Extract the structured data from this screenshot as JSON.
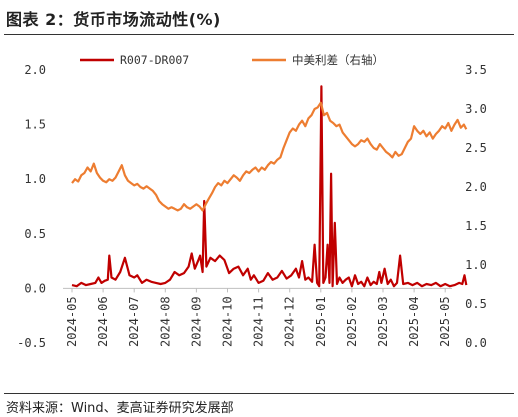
{
  "title": "图表 2：货币市场流动性(%)",
  "source": "资料来源：Wind、麦高证券研究发展部",
  "chart_data": {
    "type": "line",
    "colors": {
      "spread": "#c00000",
      "us_cn_diff": "#ed7d31"
    },
    "legend": [
      {
        "key": "spread",
        "label": "R007-DR007"
      },
      {
        "key": "us_cn_diff",
        "label": "中美利差（右轴）"
      }
    ],
    "left_axis": {
      "ylim": [
        -0.5,
        2.0
      ],
      "ticks": [
        "2.0",
        "1.5",
        "1.0",
        "0.5",
        "0.0",
        "-0.5"
      ]
    },
    "right_axis": {
      "ylim": [
        0.0,
        3.5
      ],
      "ticks": [
        "3.5",
        "3.0",
        "2.5",
        "2.0",
        "1.5",
        "1.0",
        "0.5",
        "0.0"
      ]
    },
    "x_tick_labels": [
      "2024-05",
      "2024-06",
      "2024-07",
      "2024-08",
      "2024-09",
      "2024-10",
      "2024-11",
      "2024-12",
      "2025-01",
      "2025-02",
      "2025-03",
      "2025-04",
      "2025-05"
    ],
    "series": [
      {
        "key": "spread",
        "name": "R007-DR007",
        "axis": "left",
        "points": [
          [
            0.0,
            0.03
          ],
          [
            0.15,
            0.02
          ],
          [
            0.3,
            0.05
          ],
          [
            0.45,
            0.03
          ],
          [
            0.6,
            0.04
          ],
          [
            0.75,
            0.05
          ],
          [
            0.85,
            0.1
          ],
          [
            0.95,
            0.05
          ],
          [
            1.05,
            0.07
          ],
          [
            1.15,
            0.08
          ],
          [
            1.2,
            0.3
          ],
          [
            1.27,
            0.1
          ],
          [
            1.4,
            0.08
          ],
          [
            1.55,
            0.15
          ],
          [
            1.7,
            0.28
          ],
          [
            1.85,
            0.12
          ],
          [
            2.0,
            0.1
          ],
          [
            2.1,
            0.12
          ],
          [
            2.25,
            0.05
          ],
          [
            2.4,
            0.08
          ],
          [
            2.55,
            0.06
          ],
          [
            2.7,
            0.05
          ],
          [
            2.85,
            0.04
          ],
          [
            3.0,
            0.05
          ],
          [
            3.15,
            0.08
          ],
          [
            3.3,
            0.15
          ],
          [
            3.45,
            0.12
          ],
          [
            3.6,
            0.14
          ],
          [
            3.75,
            0.2
          ],
          [
            3.85,
            0.32
          ],
          [
            3.95,
            0.18
          ],
          [
            4.05,
            0.25
          ],
          [
            4.12,
            0.3
          ],
          [
            4.2,
            0.15
          ],
          [
            4.25,
            0.8
          ],
          [
            4.32,
            0.2
          ],
          [
            4.45,
            0.28
          ],
          [
            4.6,
            0.25
          ],
          [
            4.75,
            0.3
          ],
          [
            4.9,
            0.26
          ],
          [
            5.05,
            0.14
          ],
          [
            5.2,
            0.18
          ],
          [
            5.35,
            0.2
          ],
          [
            5.5,
            0.12
          ],
          [
            5.65,
            0.18
          ],
          [
            5.75,
            0.08
          ],
          [
            5.85,
            0.12
          ],
          [
            6.0,
            0.05
          ],
          [
            6.15,
            0.07
          ],
          [
            6.3,
            0.14
          ],
          [
            6.45,
            0.08
          ],
          [
            6.6,
            0.1
          ],
          [
            6.75,
            0.16
          ],
          [
            6.9,
            0.09
          ],
          [
            7.05,
            0.12
          ],
          [
            7.2,
            0.18
          ],
          [
            7.3,
            0.1
          ],
          [
            7.4,
            0.25
          ],
          [
            7.5,
            0.08
          ],
          [
            7.6,
            0.1
          ],
          [
            7.72,
            0.06
          ],
          [
            7.8,
            0.4
          ],
          [
            7.88,
            0.05
          ],
          [
            7.95,
            0.02
          ],
          [
            8.02,
            1.85
          ],
          [
            8.08,
            0.05
          ],
          [
            8.15,
            0.1
          ],
          [
            8.22,
            0.4
          ],
          [
            8.28,
            0.05
          ],
          [
            8.33,
            1.05
          ],
          [
            8.38,
            0.02
          ],
          [
            8.45,
            0.6
          ],
          [
            8.52,
            0.04
          ],
          [
            8.6,
            0.1
          ],
          [
            8.7,
            0.05
          ],
          [
            8.8,
            0.08
          ],
          [
            8.9,
            0.1
          ],
          [
            9.0,
            0.02
          ],
          [
            9.1,
            0.12
          ],
          [
            9.2,
            0.04
          ],
          [
            9.3,
            0.06
          ],
          [
            9.4,
            0.02
          ],
          [
            9.5,
            0.1
          ],
          [
            9.6,
            0.03
          ],
          [
            9.7,
            0.06
          ],
          [
            9.8,
            0.04
          ],
          [
            9.88,
            0.15
          ],
          [
            9.95,
            0.05
          ],
          [
            10.05,
            0.18
          ],
          [
            10.15,
            0.04
          ],
          [
            10.25,
            0.08
          ],
          [
            10.35,
            0.02
          ],
          [
            10.45,
            0.05
          ],
          [
            10.55,
            0.3
          ],
          [
            10.65,
            0.04
          ],
          [
            10.8,
            0.05
          ],
          [
            10.95,
            0.03
          ],
          [
            11.1,
            0.05
          ],
          [
            11.25,
            0.02
          ],
          [
            11.4,
            0.04
          ],
          [
            11.55,
            0.03
          ],
          [
            11.7,
            0.05
          ],
          [
            11.85,
            0.02
          ],
          [
            12.0,
            0.04
          ],
          [
            12.15,
            0.02
          ],
          [
            12.3,
            0.03
          ],
          [
            12.45,
            0.05
          ],
          [
            12.55,
            0.04
          ],
          [
            12.62,
            0.12
          ],
          [
            12.68,
            0.03
          ]
        ]
      },
      {
        "key": "us_cn_diff",
        "name": "中美利差（右轴）",
        "axis": "right",
        "points": [
          [
            0.0,
            2.05
          ],
          [
            0.1,
            2.1
          ],
          [
            0.2,
            2.07
          ],
          [
            0.3,
            2.15
          ],
          [
            0.4,
            2.18
          ],
          [
            0.5,
            2.25
          ],
          [
            0.6,
            2.2
          ],
          [
            0.7,
            2.3
          ],
          [
            0.8,
            2.18
          ],
          [
            0.9,
            2.12
          ],
          [
            1.0,
            2.08
          ],
          [
            1.1,
            2.06
          ],
          [
            1.2,
            2.1
          ],
          [
            1.3,
            2.08
          ],
          [
            1.4,
            2.12
          ],
          [
            1.5,
            2.2
          ],
          [
            1.6,
            2.28
          ],
          [
            1.7,
            2.15
          ],
          [
            1.8,
            2.08
          ],
          [
            1.9,
            2.05
          ],
          [
            2.0,
            2.02
          ],
          [
            2.1,
            2.04
          ],
          [
            2.2,
            2.0
          ],
          [
            2.3,
            1.98
          ],
          [
            2.4,
            2.01
          ],
          [
            2.5,
            1.98
          ],
          [
            2.6,
            1.95
          ],
          [
            2.7,
            1.9
          ],
          [
            2.8,
            1.82
          ],
          [
            2.9,
            1.78
          ],
          [
            3.0,
            1.75
          ],
          [
            3.1,
            1.72
          ],
          [
            3.2,
            1.74
          ],
          [
            3.3,
            1.72
          ],
          [
            3.4,
            1.7
          ],
          [
            3.5,
            1.72
          ],
          [
            3.6,
            1.78
          ],
          [
            3.7,
            1.74
          ],
          [
            3.8,
            1.72
          ],
          [
            3.9,
            1.75
          ],
          [
            4.0,
            1.78
          ],
          [
            4.1,
            1.75
          ],
          [
            4.2,
            1.7
          ],
          [
            4.3,
            1.78
          ],
          [
            4.4,
            1.85
          ],
          [
            4.5,
            1.92
          ],
          [
            4.6,
            2.0
          ],
          [
            4.7,
            2.05
          ],
          [
            4.8,
            2.02
          ],
          [
            4.9,
            2.08
          ],
          [
            5.0,
            2.05
          ],
          [
            5.1,
            2.1
          ],
          [
            5.2,
            2.15
          ],
          [
            5.3,
            2.12
          ],
          [
            5.4,
            2.08
          ],
          [
            5.5,
            2.15
          ],
          [
            5.6,
            2.2
          ],
          [
            5.7,
            2.18
          ],
          [
            5.8,
            2.22
          ],
          [
            5.9,
            2.25
          ],
          [
            6.0,
            2.2
          ],
          [
            6.1,
            2.25
          ],
          [
            6.2,
            2.22
          ],
          [
            6.3,
            2.28
          ],
          [
            6.4,
            2.32
          ],
          [
            6.5,
            2.3
          ],
          [
            6.6,
            2.35
          ],
          [
            6.7,
            2.38
          ],
          [
            6.8,
            2.5
          ],
          [
            6.9,
            2.6
          ],
          [
            7.0,
            2.7
          ],
          [
            7.1,
            2.75
          ],
          [
            7.2,
            2.72
          ],
          [
            7.3,
            2.8
          ],
          [
            7.4,
            2.85
          ],
          [
            7.5,
            2.78
          ],
          [
            7.6,
            2.88
          ],
          [
            7.7,
            2.92
          ],
          [
            7.8,
            3.0
          ],
          [
            7.9,
            3.02
          ],
          [
            8.0,
            3.08
          ],
          [
            8.05,
            3.0
          ],
          [
            8.1,
            2.92
          ],
          [
            8.2,
            2.95
          ],
          [
            8.3,
            2.85
          ],
          [
            8.4,
            2.82
          ],
          [
            8.5,
            2.78
          ],
          [
            8.6,
            2.8
          ],
          [
            8.7,
            2.7
          ],
          [
            8.8,
            2.65
          ],
          [
            8.9,
            2.6
          ],
          [
            9.0,
            2.55
          ],
          [
            9.1,
            2.52
          ],
          [
            9.2,
            2.55
          ],
          [
            9.3,
            2.6
          ],
          [
            9.4,
            2.58
          ],
          [
            9.5,
            2.62
          ],
          [
            9.6,
            2.55
          ],
          [
            9.7,
            2.5
          ],
          [
            9.8,
            2.48
          ],
          [
            9.9,
            2.55
          ],
          [
            10.0,
            2.5
          ],
          [
            10.1,
            2.45
          ],
          [
            10.2,
            2.42
          ],
          [
            10.3,
            2.38
          ],
          [
            10.4,
            2.45
          ],
          [
            10.5,
            2.4
          ],
          [
            10.6,
            2.42
          ],
          [
            10.7,
            2.5
          ],
          [
            10.8,
            2.58
          ],
          [
            10.9,
            2.62
          ],
          [
            11.0,
            2.78
          ],
          [
            11.1,
            2.72
          ],
          [
            11.2,
            2.68
          ],
          [
            11.3,
            2.72
          ],
          [
            11.4,
            2.65
          ],
          [
            11.5,
            2.7
          ],
          [
            11.6,
            2.62
          ],
          [
            11.7,
            2.68
          ],
          [
            11.8,
            2.72
          ],
          [
            11.9,
            2.78
          ],
          [
            12.0,
            2.75
          ],
          [
            12.1,
            2.82
          ],
          [
            12.2,
            2.72
          ],
          [
            12.3,
            2.8
          ],
          [
            12.4,
            2.86
          ],
          [
            12.5,
            2.76
          ],
          [
            12.6,
            2.8
          ],
          [
            12.68,
            2.74
          ]
        ]
      }
    ]
  }
}
